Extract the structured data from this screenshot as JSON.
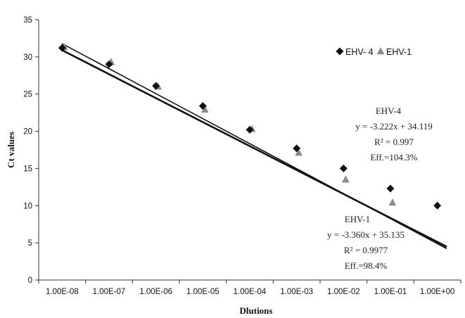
{
  "chart_data": {
    "type": "scatter",
    "xlabel": "Dlutions",
    "ylabel": "Ct values",
    "x_ticks": [
      "1.00E-08",
      "1.00E-07",
      "1.00E-06",
      "1.00E-05",
      "1.00E-04",
      "1.00E-03",
      "1.00E-02",
      "1.00E-01",
      "1.00E+00"
    ],
    "ylim": [
      0,
      35
    ],
    "y_ticks": [
      0,
      5,
      10,
      15,
      20,
      25,
      30,
      35
    ],
    "legend_position": "top-right",
    "grid": false,
    "series": [
      {
        "name": "EHV- 4",
        "marker": "diamond",
        "color": "#111111",
        "x": [
          1e-08,
          1e-07,
          1e-06,
          1e-05,
          0.0001,
          0.001,
          0.01,
          0.1,
          1
        ],
        "y": [
          31.2,
          29.0,
          26.1,
          23.4,
          20.2,
          17.7,
          15.0,
          12.3,
          10.0
        ],
        "trendline": {
          "slope": -3.222,
          "intercept": 34.119,
          "x_range": [
            1,
            9.2
          ]
        }
      },
      {
        "name": "EHV-1",
        "marker": "triangle",
        "color": "#8c8c8c",
        "x": [
          1e-08,
          1e-07,
          1e-06,
          1e-05,
          0.0001,
          0.001,
          0.01,
          0.1
        ],
        "y": [
          31.3,
          29.3,
          26.0,
          22.9,
          20.3,
          17.1,
          13.5,
          10.4
        ],
        "trendline": {
          "slope": -3.36,
          "intercept": 35.135,
          "x_range": [
            1,
            9.2
          ]
        }
      }
    ],
    "annotations": [
      {
        "series": "EHV- 4",
        "lines": [
          "EHV-4",
          "y = -3.222x + 34.119",
          "R² = 0.997",
          "Eff.=104.3%"
        ]
      },
      {
        "series": "EHV-1",
        "lines": [
          "EHV-1",
          "y = -3.360x + 35.135",
          "R² = 0.9977",
          "Eff.=98.4%"
        ]
      }
    ]
  }
}
